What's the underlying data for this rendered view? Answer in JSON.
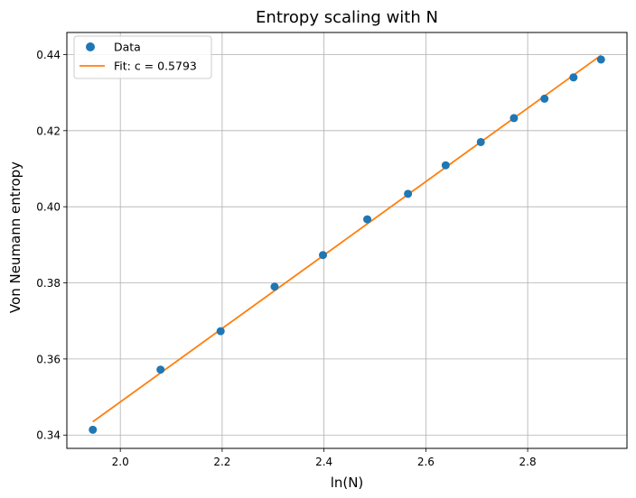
{
  "chart_data": {
    "type": "scatter",
    "title": "Entropy scaling with N",
    "xlabel": "ln(N)",
    "ylabel": "Von Neumann entropy",
    "xlim": [
      1.895,
      2.995
    ],
    "ylim": [
      0.3365,
      0.4458
    ],
    "xticks": [
      2.0,
      2.2,
      2.4,
      2.6,
      2.8
    ],
    "yticks": [
      0.34,
      0.36,
      0.38,
      0.4,
      0.42,
      0.44
    ],
    "xtick_labels": [
      "2.0",
      "2.2",
      "2.4",
      "2.6",
      "2.8"
    ],
    "ytick_labels": [
      "0.34",
      "0.36",
      "0.38",
      "0.40",
      "0.42",
      "0.44"
    ],
    "grid": true,
    "legend_position": "top-left",
    "series": [
      {
        "name": "Data",
        "kind": "scatter",
        "color": "#1f77b4",
        "x": [
          1.946,
          2.079,
          2.197,
          2.303,
          2.398,
          2.485,
          2.565,
          2.639,
          2.708,
          2.773,
          2.833,
          2.89,
          2.944
        ],
        "y": [
          0.3414,
          0.3572,
          0.3673,
          0.379,
          0.3873,
          0.3967,
          0.4034,
          0.4109,
          0.417,
          0.4233,
          0.4284,
          0.434,
          0.4387
        ]
      },
      {
        "name": "Fit: c = 0.5793",
        "kind": "line",
        "color": "#ff7f0e",
        "x": [
          1.946,
          2.944
        ],
        "y": [
          0.3435,
          0.4398
        ]
      }
    ]
  }
}
